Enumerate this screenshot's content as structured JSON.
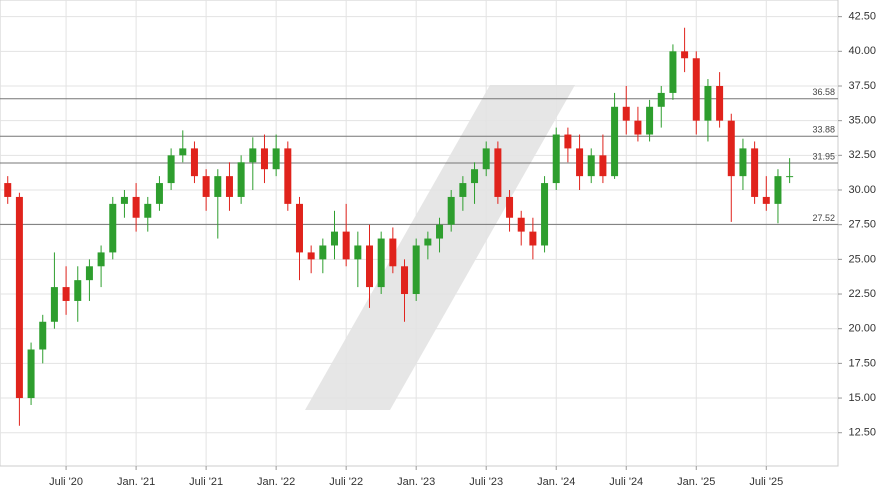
{
  "chart_data": {
    "type": "candlestick",
    "categories": [
      null,
      null,
      null,
      null,
      null,
      "Juli '20",
      null,
      null,
      null,
      null,
      null,
      "Jan. '21",
      null,
      null,
      null,
      null,
      null,
      "Juli '21",
      null,
      null,
      null,
      null,
      null,
      "Jan. '22",
      null,
      null,
      null,
      null,
      null,
      "Juli '22",
      null,
      null,
      null,
      null,
      null,
      "Jan. '23",
      null,
      null,
      null,
      null,
      null,
      "Juli '23",
      null,
      null,
      null,
      null,
      null,
      "Jan. '24",
      null,
      null,
      null,
      null,
      null,
      "Juli '24",
      null,
      null,
      null,
      null,
      null,
      "Jan. '25",
      null,
      null,
      null,
      null,
      null,
      "Juli '25",
      null,
      null
    ],
    "open": [
      30.5,
      29.5,
      15,
      18.5,
      20.5,
      23,
      22,
      23.5,
      24.5,
      25.5,
      29,
      29.5,
      28,
      29,
      30.5,
      32.5,
      33,
      31,
      29.5,
      31,
      29.5,
      32,
      33,
      31.5,
      33,
      29,
      25.5,
      25,
      26,
      27,
      25,
      26,
      23,
      26.5,
      24.5,
      22.5,
      26,
      26.5,
      27.5,
      29.5,
      30.5,
      31.5,
      33,
      29.5,
      28,
      27,
      26,
      30.5,
      34,
      33,
      31,
      32.5,
      31,
      36,
      35,
      34,
      36,
      37,
      40,
      39.5,
      35,
      37.5,
      35,
      31,
      33,
      29.5,
      29,
      31
    ],
    "high": [
      31,
      29.8,
      19,
      21,
      25.5,
      24.5,
      24.5,
      25,
      26,
      29.5,
      30,
      30.5,
      29.5,
      31,
      33,
      34.3,
      33.5,
      31.5,
      31.5,
      32,
      32.5,
      33.8,
      34,
      34,
      33.5,
      29.5,
      26,
      26.5,
      28.5,
      29,
      27,
      27.5,
      27,
      27.3,
      25,
      26.5,
      27,
      28,
      30,
      31,
      32,
      33.5,
      33.5,
      30,
      28.5,
      28,
      31,
      34.5,
      34.5,
      34,
      33,
      34,
      37,
      37.5,
      36,
      36.5,
      37.5,
      40.5,
      41.7,
      40,
      38,
      38.5,
      35.5,
      33.7,
      33.5,
      31,
      31.5,
      32.3
    ],
    "low": [
      29,
      13,
      14.5,
      17.5,
      20,
      21,
      20.5,
      22,
      23,
      25,
      28,
      27,
      27,
      28.5,
      30,
      32,
      30.5,
      28.5,
      26.5,
      28.5,
      29,
      30,
      30.5,
      31,
      28.5,
      23.5,
      24,
      24,
      25,
      24.5,
      23,
      21.5,
      22.5,
      24,
      20.5,
      22,
      25,
      25.5,
      27,
      28.5,
      29,
      31,
      29,
      27,
      26,
      25,
      25.5,
      30,
      32,
      30,
      30.5,
      30.5,
      30.8,
      34,
      33.5,
      33.5,
      34.5,
      36.5,
      38.5,
      34,
      33.5,
      34.5,
      27.7,
      30,
      29,
      28.5,
      27.6,
      30.5
    ],
    "close": [
      29.5,
      15,
      18.5,
      20.5,
      23,
      22,
      23.5,
      24.5,
      25.5,
      29,
      29.5,
      28,
      29,
      30.5,
      32.5,
      33,
      31,
      29.5,
      31,
      29.5,
      32,
      33,
      31.5,
      33,
      29,
      25.5,
      25,
      26,
      27,
      25,
      26,
      23,
      26.5,
      24.5,
      22.5,
      26,
      26.5,
      27.5,
      29.5,
      30.5,
      31.5,
      33,
      29.5,
      28,
      27,
      26,
      30.5,
      34,
      33,
      31,
      32.5,
      31,
      36,
      35,
      34,
      36,
      37,
      40,
      39.5,
      35,
      37.5,
      35,
      31,
      33,
      29.5,
      29,
      31,
      31
    ],
    "up_color": "#2e9e2e",
    "down_color": "#e0231c",
    "levels": [
      36.58,
      33.88,
      31.95,
      27.52
    ],
    "ylim": [
      10.1,
      43.7
    ],
    "yticks": [
      {
        "value": 12.5,
        "label": "12.50"
      },
      {
        "value": 15,
        "label": "15.00"
      },
      {
        "value": 17.5,
        "label": "17.50"
      },
      {
        "value": 20,
        "label": "20.00"
      },
      {
        "value": 22.5,
        "label": "22.50"
      },
      {
        "value": 25,
        "label": "25.00"
      },
      {
        "value": 27.5,
        "label": "27.50"
      },
      {
        "value": 30,
        "label": "30.00"
      },
      {
        "value": 32.5,
        "label": "32.50"
      },
      {
        "value": 35,
        "label": "35.00"
      },
      {
        "value": 37.5,
        "label": "37.50"
      },
      {
        "value": 40,
        "label": "40.00"
      },
      {
        "value": 42.5,
        "label": "42.50"
      }
    ],
    "grid": true
  }
}
